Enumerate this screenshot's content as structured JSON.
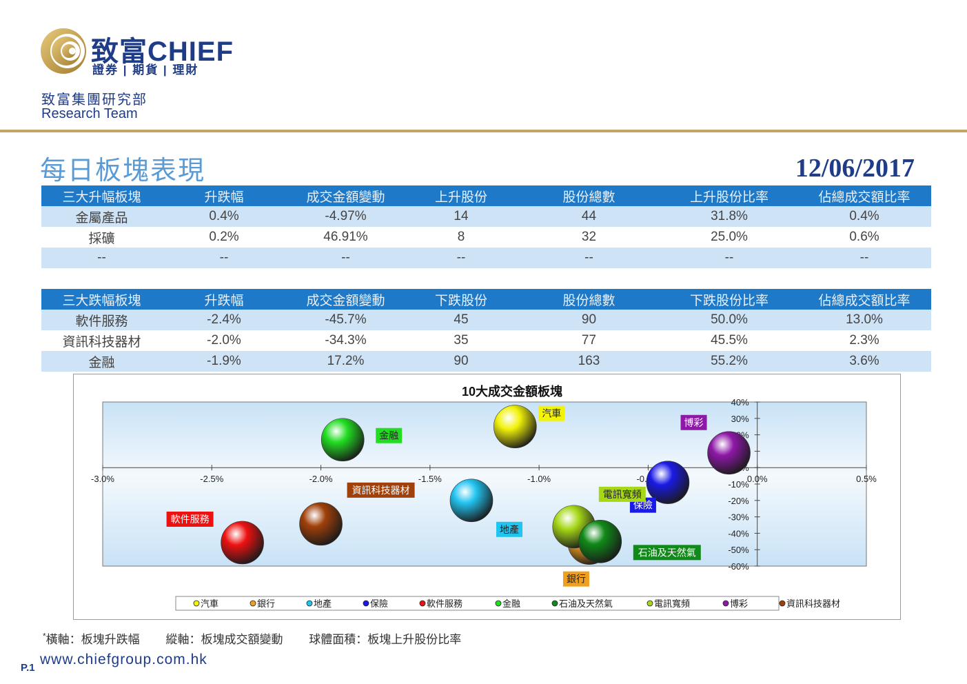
{
  "brand": {
    "name": "致富CHIEF",
    "tagline": "證券 | 期貨 | 理財",
    "team_cn": "致富集團研究部",
    "team_en": "Research Team",
    "gold": "#c4a464",
    "navy": "#1f3c88"
  },
  "page": {
    "title": "每日板塊表現",
    "date": "12/06/2017",
    "page_no": "P.1",
    "website": "www.chiefgroup.com.hk",
    "footnote_star": "*",
    "footnote": "橫軸：板塊升跌幅        縱軸：板塊成交額變動        球體面積：板塊上升股份比率"
  },
  "top_gainers": {
    "headers": [
      "三大升幅板塊",
      "升跌幅",
      "成交金額變動",
      "上升股份",
      "股份總數",
      "上升股份比率",
      "佔總成交額比率"
    ],
    "rows": [
      [
        "金屬產品",
        "0.4%",
        "-4.97%",
        "14",
        "44",
        "31.8%",
        "0.4%"
      ],
      [
        "採礦",
        "0.2%",
        "46.91%",
        "8",
        "32",
        "25.0%",
        "0.6%"
      ],
      [
        "--",
        "--",
        "--",
        "--",
        "--",
        "--",
        "--"
      ]
    ]
  },
  "top_losers": {
    "headers": [
      "三大跌幅板塊",
      "升跌幅",
      "成交金額變動",
      "下跌股份",
      "股份總數",
      "下跌股份比率",
      "佔總成交額比率"
    ],
    "rows": [
      [
        "軟件服務",
        "-2.4%",
        "-45.7%",
        "45",
        "90",
        "50.0%",
        "13.0%"
      ],
      [
        "資訊科技器材",
        "-2.0%",
        "-34.3%",
        "35",
        "77",
        "45.5%",
        "2.3%"
      ],
      [
        "金融",
        "-1.9%",
        "17.2%",
        "90",
        "163",
        "55.2%",
        "3.6%"
      ]
    ]
  },
  "chart_data": {
    "type": "scatter",
    "title": "10大成交金額板塊",
    "xlim": [
      -0.03,
      0.005
    ],
    "ylim": [
      -0.6,
      0.4
    ],
    "x_ticks": [
      "-3.0%",
      "-2.5%",
      "-2.0%",
      "-1.5%",
      "-1.0%",
      "-0.5%",
      "0.0%",
      "0.5%"
    ],
    "y_ticks": [
      "40%",
      "30%",
      "20%",
      "10%",
      "0%",
      "-10%",
      "-20%",
      "-30%",
      "-40%",
      "-50%",
      "-60%"
    ],
    "legend_position": "bottom",
    "series": [
      {
        "name": "汽車",
        "x": -0.0111,
        "y": 0.25,
        "color": "#f2f20a"
      },
      {
        "name": "銀行",
        "x": -0.0077,
        "y": -0.46,
        "color": "#f0a020"
      },
      {
        "name": "地產",
        "x": -0.0131,
        "y": -0.2,
        "color": "#22c4f0"
      },
      {
        "name": "保險",
        "x": -0.0041,
        "y": -0.09,
        "color": "#1a1ae6"
      },
      {
        "name": "軟件服務",
        "x": -0.0236,
        "y": -0.457,
        "color": "#ee1111"
      },
      {
        "name": "金融",
        "x": -0.019,
        "y": 0.17,
        "color": "#22dd22"
      },
      {
        "name": "石油及天然氣",
        "x": -0.0072,
        "y": -0.45,
        "color": "#108a18"
      },
      {
        "name": "電訊寬頻",
        "x": -0.0084,
        "y": -0.36,
        "color": "#a6d818"
      },
      {
        "name": "博彩",
        "x": -0.0013,
        "y": 0.09,
        "color": "#8e18a8"
      },
      {
        "name": "資訊科技器材",
        "x": -0.02,
        "y": -0.343,
        "color": "#a0400a"
      }
    ]
  }
}
